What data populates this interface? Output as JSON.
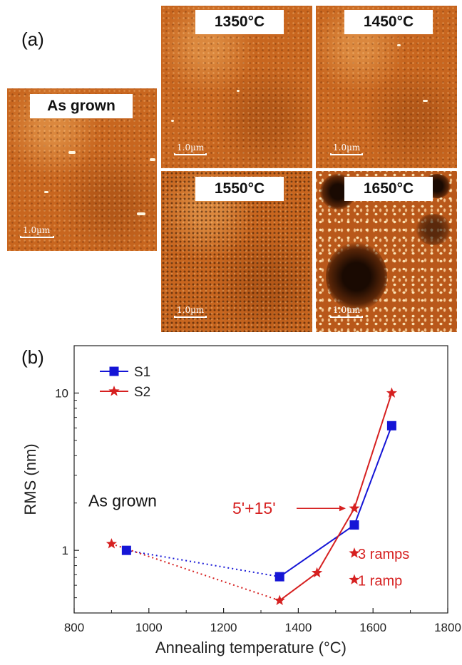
{
  "panel_a": {
    "label": "(a)",
    "images": [
      {
        "title": "As grown",
        "scale_label": "1.0µm"
      },
      {
        "title": "1350°C",
        "scale_label": "1.0µm"
      },
      {
        "title": "1450°C",
        "scale_label": "1.0µm"
      },
      {
        "title": "1550°C",
        "scale_label": "1.0µm"
      },
      {
        "title": "1650°C",
        "scale_label": "1.0µm"
      }
    ]
  },
  "panel_b": {
    "label": "(b)"
  },
  "chart_data": {
    "type": "line",
    "xlabel": "Annealing temperature (°C)",
    "ylabel": "RMS (nm)",
    "xlim": [
      800,
      1800
    ],
    "ylim": [
      0.4,
      20
    ],
    "yscale": "log",
    "xticks": [
      800,
      1000,
      1200,
      1400,
      1600,
      1800
    ],
    "yticks": [
      1,
      10
    ],
    "legend_position": "top-left",
    "series": [
      {
        "name": "S1",
        "color": "#1515d6",
        "marker": "square",
        "x": [
          940,
          1350,
          1550,
          1650
        ],
        "y": [
          1.0,
          0.68,
          1.45,
          6.2
        ],
        "dotted_segments": [
          [
            0,
            1
          ]
        ]
      },
      {
        "name": "S2",
        "color": "#d62020",
        "marker": "star",
        "x": [
          900,
          1350,
          1450,
          1550,
          1650
        ],
        "y": [
          1.1,
          0.48,
          0.72,
          1.85,
          10.0
        ],
        "dotted_segments": [
          [
            0,
            1
          ]
        ]
      }
    ],
    "extra_points": [
      {
        "x": 1550,
        "y": 0.96,
        "color": "#d62020",
        "marker": "star"
      },
      {
        "x": 1550,
        "y": 0.65,
        "color": "#d62020",
        "marker": "star"
      }
    ],
    "annotations": [
      {
        "text": "As grown",
        "color": "#111111"
      },
      {
        "text": "5'+15'",
        "color": "#d62020"
      },
      {
        "text": "3 ramps",
        "color": "#d62020"
      },
      {
        "text": "1 ramp",
        "color": "#d62020"
      }
    ]
  }
}
